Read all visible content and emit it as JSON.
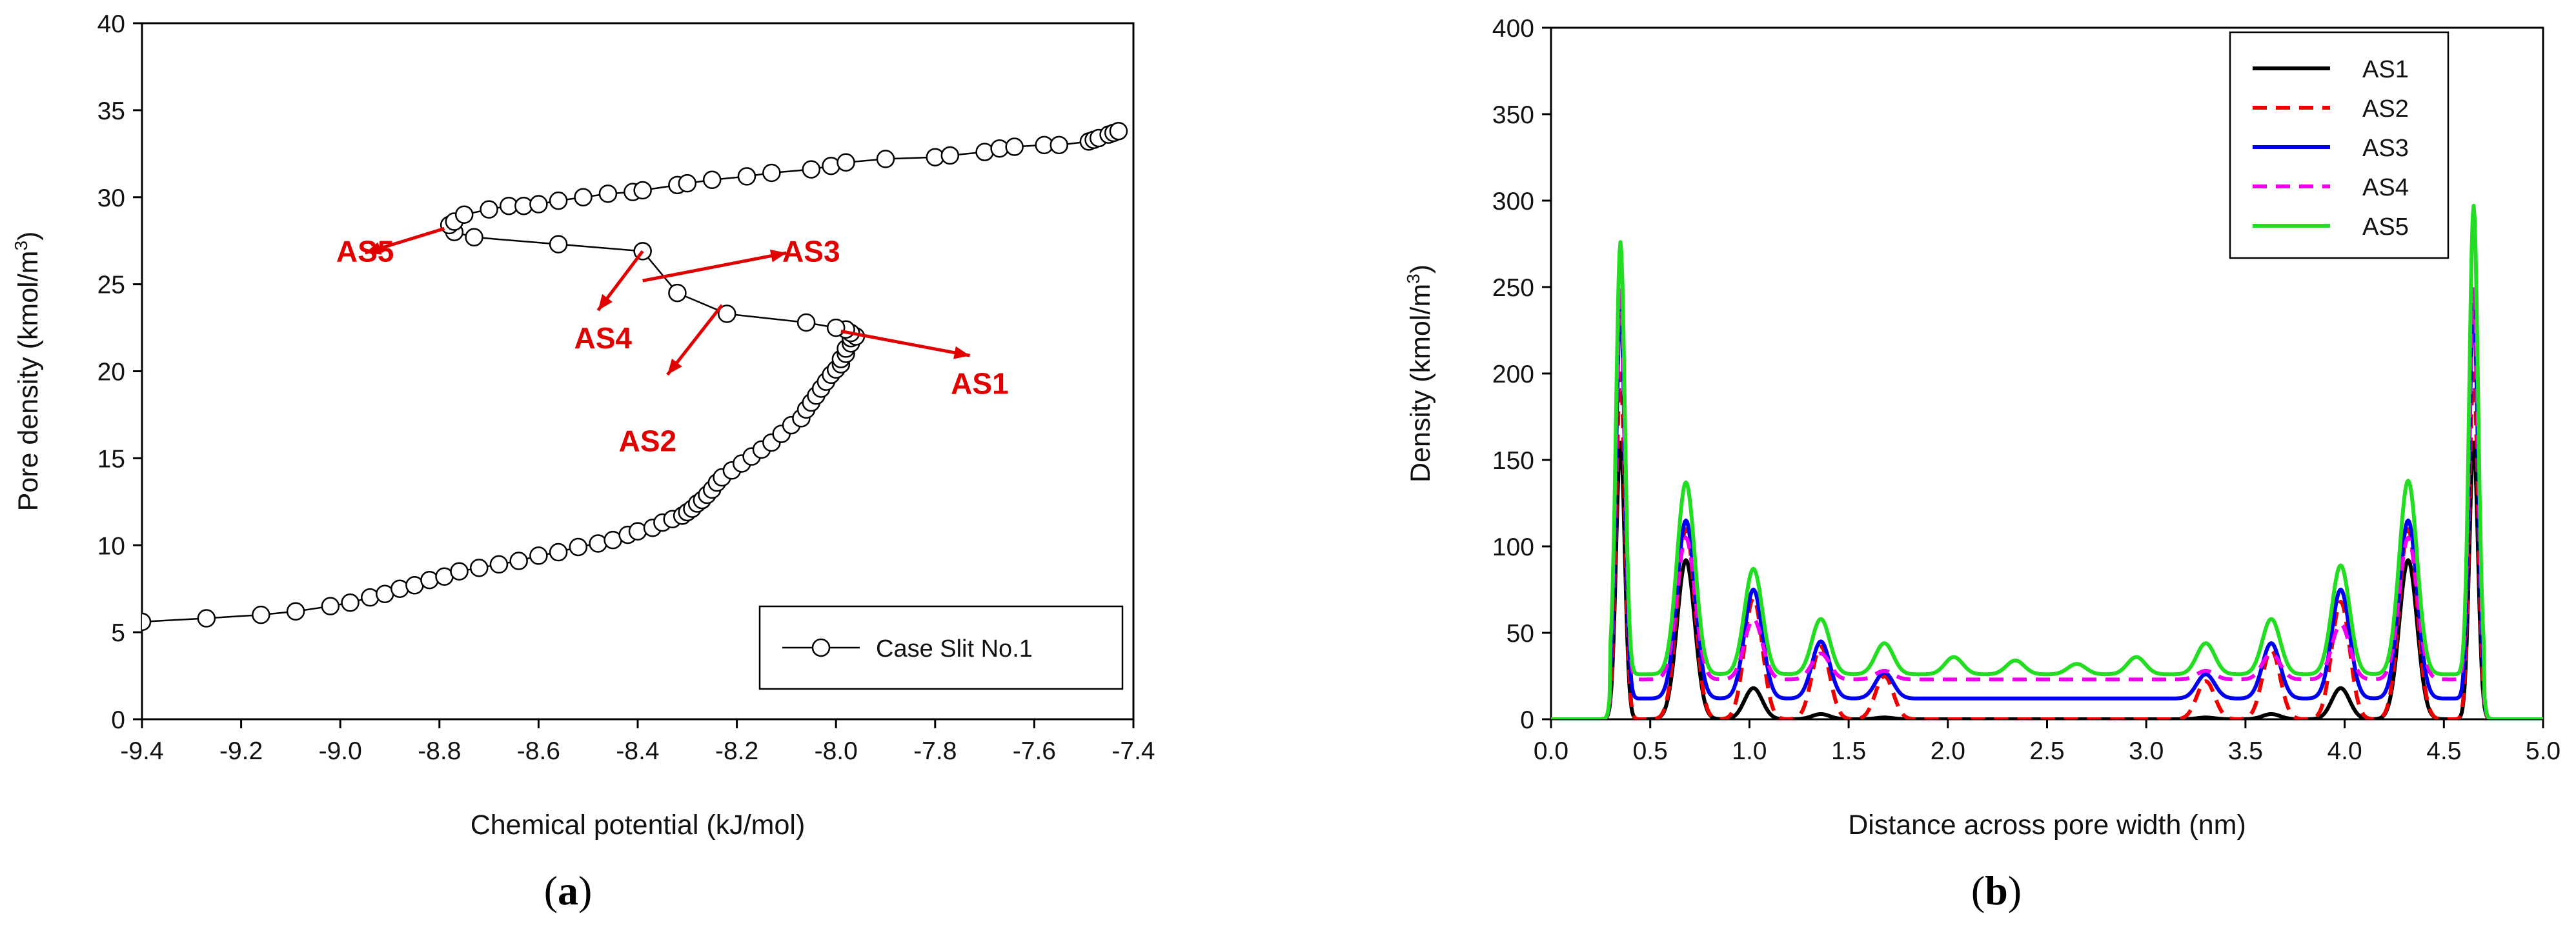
{
  "panels": [
    {
      "id": "a",
      "open": "(",
      "letter": "a",
      "close": ")"
    },
    {
      "id": "b",
      "open": "(",
      "letter": "b",
      "close": ")"
    }
  ],
  "chart_data": [
    {
      "id": "a",
      "type": "scatter",
      "title": "",
      "xlabel": "Chemical potential (kJ/mol)",
      "ylabel_main": "Pore density (kmol/m",
      "ylabel_sup": "3",
      "ylabel_close": ")",
      "xlim": [
        -9.4,
        -7.4
      ],
      "ylim": [
        0,
        40
      ],
      "xticks": [
        -9.4,
        -9.2,
        -9.0,
        -8.8,
        -8.6,
        -8.4,
        -8.2,
        -8.0,
        -7.8,
        -7.6,
        -7.4
      ],
      "xtick_labels": [
        "-9.4",
        "-9.2",
        "-9.0",
        "-8.8",
        "-8.6",
        "-8.4",
        "-8.2",
        "-8.0",
        "-7.8",
        "-7.6",
        "-7.4"
      ],
      "yticks": [
        0,
        5,
        10,
        15,
        20,
        25,
        30,
        35,
        40
      ],
      "ytick_labels": [
        "0",
        "5",
        "10",
        "15",
        "20",
        "25",
        "30",
        "35",
        "40"
      ],
      "grid": false,
      "legend": {
        "position": "bottom-right",
        "entries": [
          {
            "label": "Case Slit No.1",
            "marker": "open-circle"
          }
        ]
      },
      "series": [
        {
          "name": "Case Slit No.1",
          "line_color": "#000000",
          "marker": "open-circle",
          "x": [
            -9.4,
            -9.27,
            -9.16,
            -9.09,
            -9.02,
            -8.98,
            -8.94,
            -8.91,
            -8.88,
            -8.85,
            -8.82,
            -8.79,
            -8.76,
            -8.72,
            -8.68,
            -8.64,
            -8.6,
            -8.56,
            -8.52,
            -8.48,
            -8.45,
            -8.42,
            -8.4,
            -8.37,
            -8.35,
            -8.33,
            -8.31,
            -8.3,
            -8.29,
            -8.28,
            -8.27,
            -8.26,
            -8.25,
            -8.24,
            -8.23,
            -8.21,
            -8.19,
            -8.17,
            -8.15,
            -8.13,
            -8.11,
            -8.09,
            -8.07,
            -8.06,
            -8.05,
            -8.04,
            -8.03,
            -8.02,
            -8.01,
            -8.0,
            -7.99,
            -7.99,
            -7.98,
            -7.98,
            -7.97,
            -7.97,
            -7.96,
            -7.97,
            -7.98,
            -8.0,
            -8.06,
            -8.22,
            -8.32,
            -8.39,
            -8.56,
            -8.73,
            -8.77,
            -8.78,
            -8.77,
            -8.75,
            -8.7,
            -8.66,
            -8.63,
            -8.6,
            -8.56,
            -8.51,
            -8.46,
            -8.41,
            -8.39,
            -8.32,
            -8.3,
            -8.25,
            -8.18,
            -8.13,
            -8.05,
            -8.01,
            -7.98,
            -7.9,
            -7.8,
            -7.77,
            -7.7,
            -7.67,
            -7.64,
            -7.58,
            -7.55,
            -7.49,
            -7.48,
            -7.47,
            -7.45,
            -7.44,
            -7.43
          ],
          "y": [
            5.6,
            5.8,
            6.0,
            6.2,
            6.5,
            6.7,
            7.0,
            7.2,
            7.5,
            7.7,
            8.0,
            8.2,
            8.5,
            8.7,
            8.9,
            9.1,
            9.4,
            9.6,
            9.9,
            10.1,
            10.3,
            10.6,
            10.8,
            11.0,
            11.3,
            11.5,
            11.7,
            11.9,
            12.1,
            12.4,
            12.6,
            12.9,
            13.2,
            13.6,
            13.9,
            14.3,
            14.7,
            15.1,
            15.5,
            15.9,
            16.4,
            16.9,
            17.3,
            17.8,
            18.2,
            18.6,
            19.0,
            19.4,
            19.8,
            20.1,
            20.4,
            20.7,
            21.0,
            21.3,
            21.6,
            21.9,
            22.0,
            22.2,
            22.4,
            22.5,
            22.8,
            23.3,
            24.5,
            26.9,
            27.3,
            27.7,
            28.0,
            28.4,
            28.6,
            29.0,
            29.3,
            29.5,
            29.5,
            29.6,
            29.8,
            30.0,
            30.2,
            30.3,
            30.4,
            30.7,
            30.8,
            31.0,
            31.2,
            31.4,
            31.6,
            31.8,
            32.0,
            32.2,
            32.3,
            32.4,
            32.6,
            32.8,
            32.9,
            33.0,
            33.0,
            33.2,
            33.3,
            33.4,
            33.6,
            33.7,
            33.8
          ]
        }
      ],
      "annotations": [
        {
          "text": "AS5",
          "text_x": -8.95,
          "text_y": 26.9,
          "arrow_from": [
            -8.79,
            28.2
          ],
          "arrow_to": [
            -8.95,
            26.8
          ]
        },
        {
          "text": "AS3",
          "text_x": -8.05,
          "text_y": 26.9,
          "arrow_from": [
            -8.39,
            25.2
          ],
          "arrow_to": [
            -8.1,
            26.8
          ]
        },
        {
          "text": "AS4",
          "text_x": -8.47,
          "text_y": 21.9,
          "arrow_from": [
            -8.39,
            26.9
          ],
          "arrow_to": [
            -8.48,
            23.5
          ]
        },
        {
          "text": "AS2",
          "text_x": -8.38,
          "text_y": 16.0,
          "arrow_from": [
            -8.23,
            23.8
          ],
          "arrow_to": [
            -8.34,
            19.8
          ]
        },
        {
          "text": "AS1",
          "text_x": -7.71,
          "text_y": 19.3,
          "arrow_from": [
            -7.99,
            22.3
          ],
          "arrow_to": [
            -7.73,
            20.9
          ]
        }
      ]
    },
    {
      "id": "b",
      "type": "line",
      "title": "",
      "xlabel": "Distance across pore width (nm)",
      "ylabel_main": "Density (kmol/m",
      "ylabel_sup": "3",
      "ylabel_close": ")",
      "xlim": [
        0.0,
        5.0
      ],
      "ylim": [
        0,
        400
      ],
      "xticks": [
        0.0,
        0.5,
        1.0,
        1.5,
        2.0,
        2.5,
        3.0,
        3.5,
        4.0,
        4.5,
        5.0
      ],
      "xtick_labels": [
        "0.0",
        "0.5",
        "1.0",
        "1.5",
        "2.0",
        "2.5",
        "3.0",
        "3.5",
        "4.0",
        "4.5",
        "5.0"
      ],
      "yticks": [
        0,
        50,
        100,
        150,
        200,
        250,
        300,
        350,
        400
      ],
      "ytick_labels": [
        "0",
        "50",
        "100",
        "150",
        "200",
        "250",
        "300",
        "350",
        "400"
      ],
      "grid": false,
      "legend": {
        "position": "top-right"
      },
      "series": [
        {
          "name": "AS1",
          "color": "#000000",
          "dash": "solid",
          "baseline": 0,
          "peak_x": [
            0.35,
            0.68,
            1.02,
            1.36,
            1.68,
            3.3,
            3.63,
            3.98,
            4.32,
            4.65
          ],
          "peak_y": [
            160,
            92,
            18,
            3,
            1,
            1,
            3,
            18,
            92,
            160
          ]
        },
        {
          "name": "AS2",
          "color": "#ee0000",
          "dash": "dashed",
          "baseline": 0,
          "peak_x": [
            0.35,
            0.68,
            1.02,
            1.36,
            1.68,
            3.3,
            3.63,
            3.98,
            4.32,
            4.65
          ],
          "peak_y": [
            200,
            110,
            70,
            42,
            25,
            22,
            40,
            68,
            110,
            200
          ]
        },
        {
          "name": "AS3",
          "color": "#0000ee",
          "dash": "solid",
          "baseline": 12,
          "peak_x": [
            0.35,
            0.68,
            1.02,
            1.36,
            1.68,
            3.3,
            3.63,
            3.98,
            4.32,
            4.65
          ],
          "peak_y": [
            240,
            115,
            75,
            45,
            27,
            26,
            44,
            75,
            115,
            240
          ]
        },
        {
          "name": "AS4",
          "color": "#ee00ee",
          "dash": "dashed",
          "baseline": 23,
          "peak_x": [
            0.35,
            0.68,
            1.02,
            1.36,
            1.68,
            3.3,
            3.63,
            3.98,
            4.32,
            4.65
          ],
          "peak_y": [
            250,
            105,
            58,
            38,
            28,
            28,
            38,
            55,
            105,
            250
          ]
        },
        {
          "name": "AS5",
          "color": "#22dd22",
          "dash": "solid",
          "baseline": 26,
          "peak_x": [
            0.35,
            0.68,
            1.02,
            1.36,
            1.68,
            2.03,
            2.34,
            2.65,
            2.95,
            3.3,
            3.63,
            3.98,
            4.32,
            4.65
          ],
          "peak_y": [
            276,
            137,
            87,
            58,
            44,
            36,
            34,
            32,
            36,
            44,
            58,
            89,
            138,
            297
          ]
        }
      ]
    }
  ]
}
